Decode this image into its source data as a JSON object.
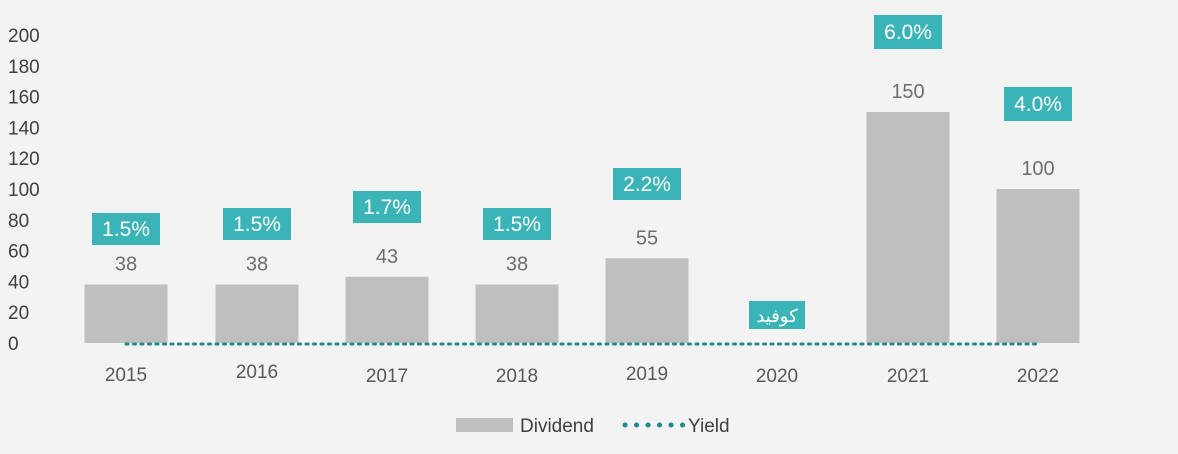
{
  "chart_data": {
    "type": "bar",
    "categories": [
      "2015",
      "2016",
      "2017",
      "2018",
      "2019",
      "2020",
      "2021",
      "2022"
    ],
    "series": [
      {
        "name": "Dividend",
        "type": "bar",
        "values": [
          38,
          38,
          43,
          38,
          55,
          null,
          150,
          100
        ],
        "data_labels": [
          "38",
          "38",
          "43",
          "38",
          "55",
          "",
          "150",
          "100"
        ]
      },
      {
        "name": "Yield",
        "type": "line-dotted",
        "labels": [
          "1.5%",
          "1.5%",
          "1.7%",
          "1.5%",
          "2.2%",
          "كوفيد",
          "6.0%",
          "4.0%"
        ]
      }
    ],
    "yticks": [
      "0",
      "20",
      "40",
      "60",
      "80",
      "100",
      "120",
      "140",
      "160",
      "180",
      "200"
    ],
    "ylim": [
      0,
      200
    ],
    "legend": {
      "position": "bottom",
      "items": [
        "Dividend",
        "Yield"
      ]
    },
    "colors": {
      "bar": "#bfbfbf",
      "yield_label_bg": "#3bb4b8",
      "yield_line": "#1e8a8e",
      "background": "#f3f3f3"
    }
  }
}
